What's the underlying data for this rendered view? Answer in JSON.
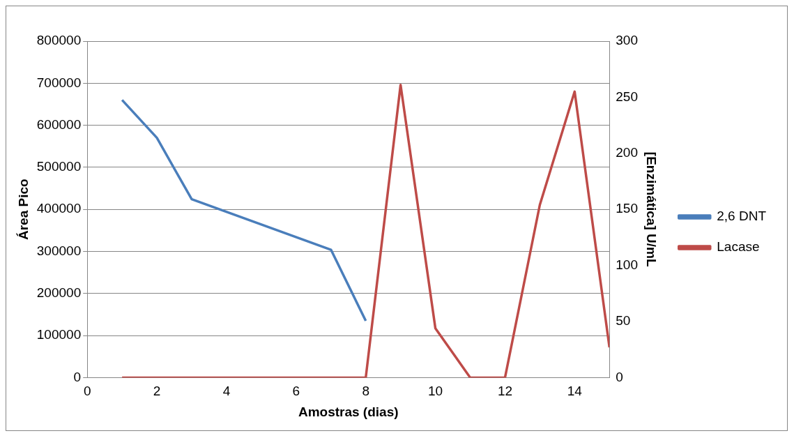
{
  "chart_data": {
    "type": "line",
    "xlabel": "Amostras (dias)",
    "ylabel": "Área Pico",
    "y2label": "[Enzimática] U/mL",
    "xlim": [
      0,
      15
    ],
    "xticks": [
      0,
      2,
      4,
      6,
      8,
      10,
      12,
      14
    ],
    "ylim": [
      0,
      800000
    ],
    "yticks": [
      0,
      100000,
      200000,
      300000,
      400000,
      500000,
      600000,
      700000,
      800000
    ],
    "y2lim": [
      0,
      300
    ],
    "y2ticks": [
      0,
      50,
      100,
      150,
      200,
      250,
      300
    ],
    "grid": "y",
    "legend": "right",
    "marker": "none",
    "line_style": "solid",
    "series": [
      {
        "name": "2,6 DNT",
        "color": "#4a7ebb",
        "x": [
          1,
          2,
          3,
          7,
          8
        ],
        "values": [
          660000,
          570000,
          424000,
          304000,
          135000
        ]
      },
      {
        "name": "Lacase",
        "color": "#be4b48",
        "axis": "y2",
        "x": [
          1,
          2,
          3,
          4,
          5,
          6,
          7,
          8,
          9,
          10,
          11,
          12,
          13,
          14,
          15
        ],
        "values": [
          0,
          0,
          0,
          0,
          0,
          0,
          0,
          0,
          261,
          44,
          0,
          0,
          154,
          255,
          27
        ]
      }
    ]
  }
}
